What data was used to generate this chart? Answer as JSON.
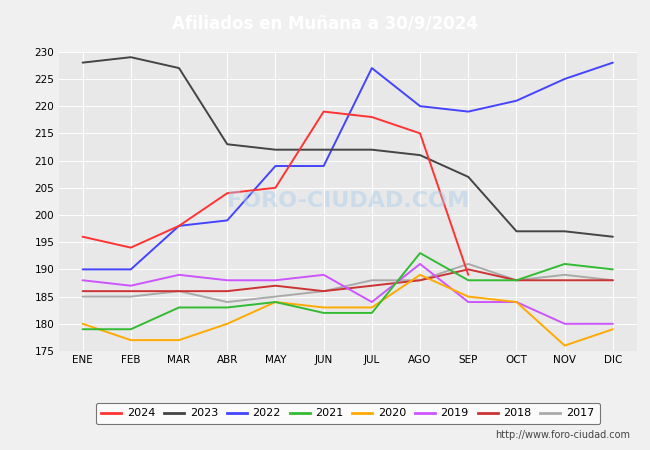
{
  "title": "Afiliados en Muñana a 30/9/2024",
  "ylim": [
    175,
    230
  ],
  "yticks": [
    175,
    180,
    185,
    190,
    195,
    200,
    205,
    210,
    215,
    220,
    225,
    230
  ],
  "months": [
    "ENE",
    "FEB",
    "MAR",
    "ABR",
    "MAY",
    "JUN",
    "JUL",
    "AGO",
    "SEP",
    "OCT",
    "NOV",
    "DIC"
  ],
  "series": {
    "2024": {
      "color": "#ff3333",
      "data": [
        196,
        194,
        198,
        204,
        205,
        219,
        218,
        215,
        189,
        null,
        null,
        null
      ]
    },
    "2023": {
      "color": "#444444",
      "data": [
        228,
        229,
        227,
        213,
        212,
        212,
        212,
        211,
        207,
        197,
        197,
        196
      ]
    },
    "2022": {
      "color": "#4444ff",
      "data": [
        190,
        190,
        198,
        199,
        209,
        209,
        227,
        220,
        219,
        221,
        225,
        228
      ]
    },
    "2021": {
      "color": "#33bb33",
      "data": [
        179,
        179,
        183,
        183,
        184,
        182,
        182,
        193,
        188,
        188,
        191,
        190
      ]
    },
    "2020": {
      "color": "#ffaa00",
      "data": [
        180,
        177,
        177,
        180,
        184,
        183,
        183,
        189,
        185,
        184,
        176,
        179
      ]
    },
    "2019": {
      "color": "#cc55ff",
      "data": [
        188,
        187,
        189,
        188,
        188,
        189,
        184,
        191,
        184,
        184,
        180,
        180
      ]
    },
    "2018": {
      "color": "#cc3333",
      "data": [
        186,
        186,
        186,
        186,
        187,
        186,
        187,
        188,
        190,
        188,
        188,
        188
      ]
    },
    "2017": {
      "color": "#aaaaaa",
      "data": [
        185,
        185,
        186,
        184,
        185,
        186,
        188,
        188,
        191,
        188,
        189,
        188
      ]
    }
  },
  "header_color": "#5599dd",
  "footer_color": "#5599dd",
  "plot_bg_color": "#e8e8e8",
  "fig_bg_color": "#f0f0f0",
  "grid_color": "#ffffff",
  "watermark": "FORO-CIUDAD.COM",
  "url": "http://www.foro-ciudad.com",
  "legend_order": [
    "2024",
    "2023",
    "2022",
    "2021",
    "2020",
    "2019",
    "2018",
    "2017"
  ]
}
